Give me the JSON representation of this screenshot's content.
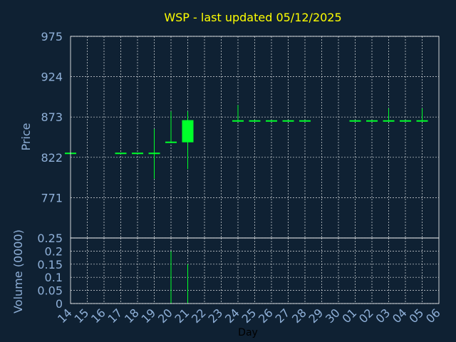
{
  "chart_data": {
    "type": "candlestick",
    "title": "WSP - last updated 05/12/2025",
    "colors": {
      "background": "#0f2133",
      "candle": "#00ff2a",
      "grid": "#ffffff",
      "title": "#ffff00",
      "ticks": "#8fb0d8"
    },
    "price": {
      "ylabel": "Price",
      "ylim": [
        720,
        975
      ],
      "yticks": [
        771,
        822,
        873,
        924,
        975
      ],
      "ohlc": [
        {
          "day": "14",
          "open": 827,
          "high": 827,
          "low": 827,
          "close": 827
        },
        {
          "day": "15"
        },
        {
          "day": "16"
        },
        {
          "day": "17",
          "open": 827,
          "high": 827,
          "low": 827,
          "close": 827
        },
        {
          "day": "18",
          "open": 827,
          "high": 827,
          "low": 827,
          "close": 827
        },
        {
          "day": "19",
          "open": 827,
          "high": 858,
          "low": 795,
          "close": 827
        },
        {
          "day": "20",
          "open": 841,
          "high": 880,
          "low": 841,
          "close": 841
        },
        {
          "day": "21",
          "open": 841,
          "high": 880,
          "low": 807,
          "close": 869
        },
        {
          "day": "22"
        },
        {
          "day": "23"
        },
        {
          "day": "24",
          "open": 868,
          "high": 888,
          "low": 868,
          "close": 868
        },
        {
          "day": "25",
          "open": 868,
          "high": 868,
          "low": 868,
          "close": 868
        },
        {
          "day": "26",
          "open": 868,
          "high": 868,
          "low": 868,
          "close": 868
        },
        {
          "day": "27",
          "open": 868,
          "high": 868,
          "low": 868,
          "close": 868
        },
        {
          "day": "28",
          "open": 868,
          "high": 868,
          "low": 868,
          "close": 868
        },
        {
          "day": "29"
        },
        {
          "day": "30"
        },
        {
          "day": "01",
          "open": 868,
          "high": 868,
          "low": 868,
          "close": 868
        },
        {
          "day": "02",
          "open": 868,
          "high": 868,
          "low": 868,
          "close": 868
        },
        {
          "day": "03",
          "open": 868,
          "high": 884,
          "low": 868,
          "close": 868
        },
        {
          "day": "04",
          "open": 868,
          "high": 868,
          "low": 868,
          "close": 868
        },
        {
          "day": "05",
          "open": 868,
          "high": 884,
          "low": 868,
          "close": 868
        },
        {
          "day": "06"
        }
      ]
    },
    "volume": {
      "ylabel": "Volume (0000)",
      "ylim": [
        0,
        0.25
      ],
      "yticks": [
        0,
        0.05,
        0.1,
        0.15,
        0.2,
        0.25
      ],
      "ytick_labels": [
        "0",
        "0.05",
        "0.1",
        "0.15",
        "0.2",
        "0.25"
      ],
      "values": [
        0,
        0,
        0,
        0,
        0,
        0,
        0.2,
        0.15,
        0,
        0,
        0,
        0,
        0,
        0,
        0,
        0,
        0,
        0,
        0,
        0,
        0,
        0,
        0
      ]
    },
    "xlabel": "Day",
    "x_tick_labels": [
      "14",
      "15",
      "16",
      "17",
      "18",
      "19",
      "20",
      "21",
      "22",
      "23",
      "24",
      "25",
      "26",
      "27",
      "28",
      "29",
      "30",
      "01",
      "02",
      "03",
      "04",
      "05",
      "06"
    ],
    "grid": true,
    "legend": "none"
  }
}
